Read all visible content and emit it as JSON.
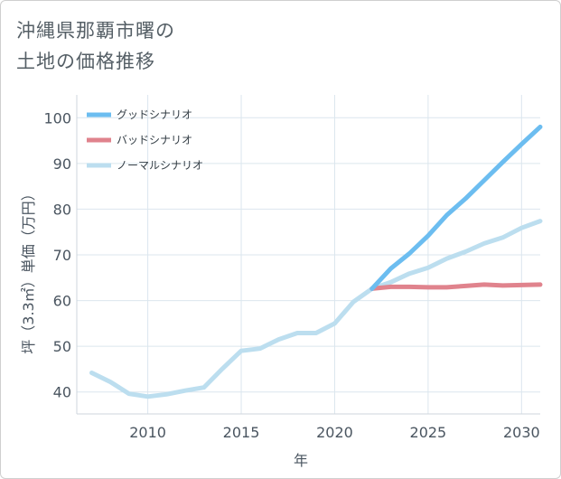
{
  "title": {
    "line1": "沖縄県那覇市曙の",
    "line2": "土地の価格推移"
  },
  "chart_data": {
    "type": "line",
    "xlabel": "年",
    "ylabel": "坪（3.3㎡）単価（万円）",
    "xlim": [
      2006.2,
      2031
    ],
    "ylim": [
      35.2,
      105
    ],
    "x_ticks": [
      2010,
      2015,
      2020,
      2025,
      2030
    ],
    "y_ticks": [
      40,
      50,
      60,
      70,
      80,
      90,
      100
    ],
    "grid": true,
    "legend_position": "top-left",
    "series": [
      {
        "name": "グッドシナリオ",
        "color": "#6cbdf0",
        "x": [
          2022,
          2023,
          2024,
          2025,
          2026,
          2027,
          2028,
          2029,
          2030,
          2031
        ],
        "y": [
          62.6,
          67.0,
          70.3,
          74.2,
          78.7,
          82.3,
          86.3,
          90.3,
          94.2,
          98.0
        ]
      },
      {
        "name": "バッドシナリオ",
        "color": "#e0838d",
        "x": [
          2022,
          2023,
          2024,
          2025,
          2026,
          2027,
          2028,
          2029,
          2030,
          2031
        ],
        "y": [
          62.6,
          63.0,
          63.0,
          62.9,
          62.9,
          63.2,
          63.5,
          63.3,
          63.4,
          63.5
        ]
      },
      {
        "name": "ノーマルシナリオ",
        "color": "#bcdeef",
        "x": [
          2007,
          2008,
          2009,
          2010,
          2011,
          2012,
          2013,
          2014,
          2015,
          2016,
          2017,
          2018,
          2019,
          2020,
          2021,
          2022,
          2023,
          2024,
          2025,
          2026,
          2027,
          2028,
          2029,
          2030,
          2031
        ],
        "y": [
          44.2,
          42.2,
          39.6,
          39.0,
          39.5,
          40.3,
          41.0,
          45.1,
          49.0,
          49.5,
          51.5,
          52.9,
          52.9,
          55.0,
          59.7,
          62.6,
          64.0,
          65.9,
          67.2,
          69.2,
          70.7,
          72.5,
          73.8,
          75.9,
          77.4
        ]
      }
    ]
  }
}
